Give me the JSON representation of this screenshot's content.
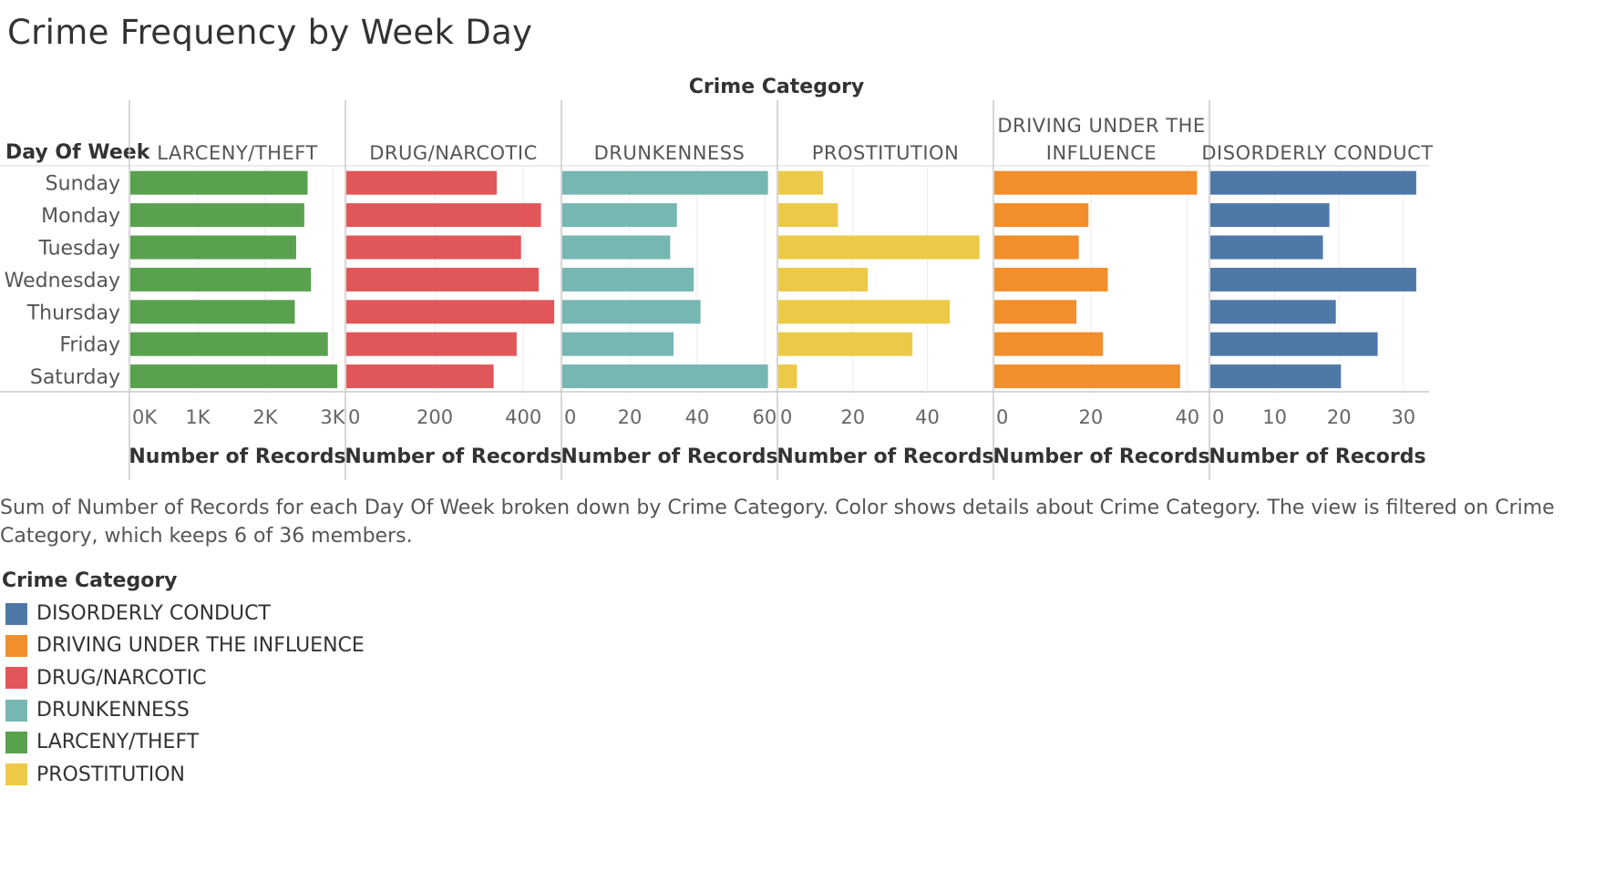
{
  "title": "Crime Frequency by Week Day",
  "column_header": "Crime Category",
  "row_header": "Day Of Week",
  "caption": "Sum of Number of Records for each Day Of Week broken down by Crime Category.  Color shows details about Crime Category. The view is filtered on Crime Category, which keeps 6 of 36 members.",
  "legend": {
    "title": "Crime Category",
    "items": [
      {
        "label": "DISORDERLY CONDUCT",
        "color": "#4e79a7"
      },
      {
        "label": "DRIVING UNDER THE INFLUENCE",
        "color": "#f28e2b"
      },
      {
        "label": "DRUG/NARCOTIC",
        "color": "#e15759"
      },
      {
        "label": "DRUNKENNESS",
        "color": "#76b7b2"
      },
      {
        "label": "LARCENY/THEFT",
        "color": "#59a14f"
      },
      {
        "label": "PROSTITUTION",
        "color": "#edc948"
      }
    ]
  },
  "chart_data": {
    "type": "bar",
    "orientation": "horizontal",
    "categories": [
      "Sunday",
      "Monday",
      "Tuesday",
      "Wednesday",
      "Thursday",
      "Friday",
      "Saturday"
    ],
    "panels": [
      {
        "name": "LARCENY/THEFT",
        "header_lines": [
          "LARCENY/THEFT"
        ],
        "color": "#59a14f",
        "values": [
          2630,
          2580,
          2460,
          2680,
          2440,
          2930,
          3070
        ],
        "xlim": [
          0,
          3150
        ],
        "ticks": [
          0,
          1000,
          2000,
          3000
        ],
        "tick_labels": [
          "0K",
          "1K",
          "2K",
          "3K"
        ],
        "xlabel": "Number of Records"
      },
      {
        "name": "DRUG/NARCOTIC",
        "header_lines": [
          "DRUG/NARCOTIC"
        ],
        "color": "#e15759",
        "values": [
          340,
          440,
          395,
          435,
          470,
          385,
          333
        ],
        "xlim": [
          0,
          480
        ],
        "ticks": [
          0,
          200,
          400
        ],
        "tick_labels": [
          "0",
          "200",
          "400"
        ],
        "xlabel": "Number of Records"
      },
      {
        "name": "DRUNKENNESS",
        "header_lines": [
          "DRUNKENNESS"
        ],
        "color": "#76b7b2",
        "values": [
          61,
          34,
          32,
          39,
          41,
          33,
          61
        ],
        "xlim": [
          0,
          63
        ],
        "ticks": [
          0,
          20,
          40,
          60
        ],
        "tick_labels": [
          "0",
          "20",
          "40",
          "60"
        ],
        "xlabel": "Number of Records"
      },
      {
        "name": "PROSTITUTION",
        "header_lines": [
          "PROSTITUTION"
        ],
        "color": "#edc948",
        "values": [
          12,
          16,
          54,
          24,
          46,
          36,
          5
        ],
        "xlim": [
          0,
          57
        ],
        "ticks": [
          0,
          20,
          40
        ],
        "tick_labels": [
          "0",
          "20",
          "40"
        ],
        "xlabel": "Number of Records"
      },
      {
        "name": "DRIVING UNDER THE INFLUENCE",
        "header_lines": [
          "DRIVING UNDER THE",
          "INFLUENCE"
        ],
        "color": "#f28e2b",
        "values": [
          42,
          19.5,
          17.5,
          23.5,
          17,
          22.5,
          38.5
        ],
        "xlim": [
          0,
          44
        ],
        "ticks": [
          0,
          20,
          40
        ],
        "tick_labels": [
          "0",
          "20",
          "40"
        ],
        "xlabel": "Number of Records"
      },
      {
        "name": "DISORDERLY CONDUCT",
        "header_lines": [
          "DISORDERLY CONDUCT"
        ],
        "color": "#4e79a7",
        "values": [
          32,
          18.5,
          17.5,
          32,
          19.5,
          26,
          20.3
        ],
        "xlim": [
          0,
          33
        ],
        "ticks": [
          0,
          10,
          20,
          30
        ],
        "tick_labels": [
          "0",
          "10",
          "20",
          "30"
        ],
        "xlabel": "Number of Records"
      }
    ],
    "grid": true
  }
}
